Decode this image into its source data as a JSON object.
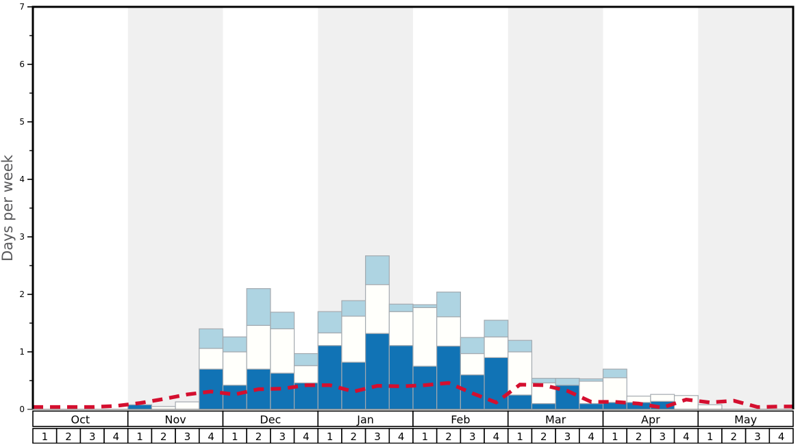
{
  "chart_data": {
    "type": "stacked-bar-with-line",
    "title": "",
    "ylabel": "Days per week",
    "ylim": [
      0,
      7
    ],
    "y_tick_labels": [
      "0",
      "1",
      "2",
      "3",
      "4",
      "5",
      "6",
      "7"
    ],
    "y_minor_step": 0.5,
    "grid": "off",
    "legend": "none",
    "months": [
      "Oct",
      "Nov",
      "Dec",
      "Jan",
      "Feb",
      "Mar",
      "Apr",
      "May"
    ],
    "weeks_per_month": 4,
    "week_labels": [
      "1",
      "2",
      "3",
      "4"
    ],
    "shaded_month_indices": [
      1,
      3,
      5,
      7
    ],
    "series": [
      {
        "name": "dark-blue-days",
        "color": "#1173b5",
        "cumulative_top": [
          0,
          0,
          0,
          0,
          0.08,
          0,
          0,
          0.7,
          0.42,
          0.7,
          0.63,
          0.46,
          1.11,
          0.82,
          1.32,
          1.11,
          0.75,
          1.1,
          0.6,
          0.9,
          0.25,
          0.1,
          0.42,
          0.1,
          0.12,
          0.12,
          0.14,
          0,
          0,
          0,
          0,
          0
        ]
      },
      {
        "name": "white-days",
        "color": "#fffffb",
        "cumulative_top": [
          0,
          0,
          0,
          0,
          0.08,
          0.05,
          0.13,
          1.06,
          1.0,
          1.46,
          1.4,
          0.76,
          1.33,
          1.62,
          2.17,
          1.7,
          1.77,
          1.61,
          0.97,
          1.26,
          1.0,
          0.46,
          0.42,
          0.49,
          0.55,
          0.23,
          0.26,
          0.24,
          0.08,
          0,
          0,
          0
        ]
      },
      {
        "name": "light-blue-days",
        "color": "#aed4e2",
        "cumulative_top": [
          0,
          0,
          0,
          0,
          0.08,
          0.05,
          0.13,
          1.4,
          1.26,
          2.1,
          1.69,
          0.97,
          1.7,
          1.89,
          2.67,
          1.83,
          1.82,
          2.04,
          1.25,
          1.55,
          1.2,
          0.54,
          0.54,
          0.53,
          0.7,
          0.23,
          0.26,
          0.24,
          0.08,
          0,
          0,
          0
        ]
      }
    ],
    "line": {
      "name": "red-dashed-average-line",
      "color": "#d40f2f",
      "values": [
        0.04,
        0.04,
        0.04,
        0.06,
        0.11,
        0.18,
        0.26,
        0.31,
        0.26,
        0.35,
        0.36,
        0.42,
        0.42,
        0.31,
        0.41,
        0.4,
        0.42,
        0.46,
        0.28,
        0.12,
        0.43,
        0.42,
        0.32,
        0.13,
        0.13,
        0.1,
        0.03,
        0.17,
        0.12,
        0.15,
        0.04,
        0.05
      ]
    },
    "colors": {
      "band": "#f0f0f0",
      "bar_border": "#a3a9af",
      "axis": "#000000",
      "baseline": "#888888",
      "tick_label": "#000000",
      "cell_border": "#000000",
      "cell_fill": "#ffffff",
      "ylabel_color": "#58585a"
    }
  }
}
